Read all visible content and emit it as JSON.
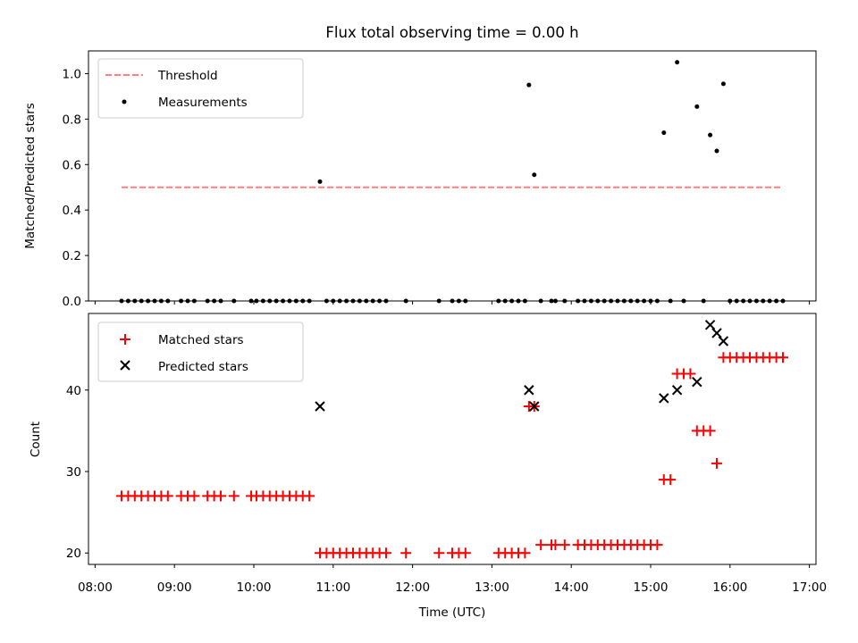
{
  "chart_data": [
    {
      "type": "scatter",
      "title": "Flux total observing time = 0.00 h",
      "ylabel": "Matched/Predicted stars",
      "xlabel": "",
      "xlim": [
        "07:55",
        "17:05"
      ],
      "ylim": [
        0.0,
        1.1
      ],
      "yticks": [
        "0.0",
        "0.2",
        "0.4",
        "0.6",
        "0.8",
        "1.0"
      ],
      "grid": false,
      "legend_position": "top-left",
      "threshold": {
        "name": "Threshold",
        "value": 0.5,
        "x_start": "08:20",
        "x_end": "16:40",
        "color": "#ff8080"
      },
      "measurements": {
        "name": "Measurements",
        "color": "#000000",
        "points": [
          [
            "08:20",
            0
          ],
          [
            "08:25",
            0
          ],
          [
            "08:30",
            0
          ],
          [
            "08:35",
            0
          ],
          [
            "08:40",
            0
          ],
          [
            "08:45",
            0
          ],
          [
            "08:50",
            0
          ],
          [
            "08:55",
            0
          ],
          [
            "09:05",
            0
          ],
          [
            "09:10",
            0
          ],
          [
            "09:15",
            0
          ],
          [
            "09:25",
            0
          ],
          [
            "09:30",
            0
          ],
          [
            "09:35",
            0
          ],
          [
            "09:45",
            0
          ],
          [
            "09:58",
            0
          ],
          [
            "10:02",
            0
          ],
          [
            "10:07",
            0
          ],
          [
            "10:12",
            0
          ],
          [
            "10:17",
            0
          ],
          [
            "10:22",
            0
          ],
          [
            "10:27",
            0
          ],
          [
            "10:32",
            0
          ],
          [
            "10:37",
            0
          ],
          [
            "10:42",
            0
          ],
          [
            "10:50",
            0.525
          ],
          [
            "10:55",
            0
          ],
          [
            "11:00",
            0
          ],
          [
            "11:05",
            0
          ],
          [
            "11:10",
            0
          ],
          [
            "11:15",
            0
          ],
          [
            "11:20",
            0
          ],
          [
            "11:25",
            0
          ],
          [
            "11:30",
            0
          ],
          [
            "11:35",
            0
          ],
          [
            "11:40",
            0
          ],
          [
            "11:55",
            0
          ],
          [
            "12:20",
            0
          ],
          [
            "12:30",
            0
          ],
          [
            "12:35",
            0
          ],
          [
            "12:40",
            0
          ],
          [
            "13:05",
            0
          ],
          [
            "13:10",
            0
          ],
          [
            "13:15",
            0
          ],
          [
            "13:20",
            0
          ],
          [
            "13:25",
            0
          ],
          [
            "13:28",
            0.95
          ],
          [
            "13:32",
            0.555
          ],
          [
            "13:37",
            0
          ],
          [
            "13:45",
            0
          ],
          [
            "13:48",
            0
          ],
          [
            "13:55",
            0
          ],
          [
            "14:05",
            0
          ],
          [
            "14:10",
            0
          ],
          [
            "14:15",
            0
          ],
          [
            "14:20",
            0
          ],
          [
            "14:25",
            0
          ],
          [
            "14:30",
            0
          ],
          [
            "14:35",
            0
          ],
          [
            "14:40",
            0
          ],
          [
            "14:45",
            0
          ],
          [
            "14:50",
            0
          ],
          [
            "14:55",
            0
          ],
          [
            "15:00",
            0
          ],
          [
            "15:05",
            0
          ],
          [
            "15:10",
            0.74
          ],
          [
            "15:15",
            0
          ],
          [
            "15:20",
            1.05
          ],
          [
            "15:25",
            0
          ],
          [
            "15:35",
            0.855
          ],
          [
            "15:40",
            0
          ],
          [
            "15:45",
            0.73
          ],
          [
            "15:50",
            0.66
          ],
          [
            "15:55",
            0.955
          ],
          [
            "16:00",
            0
          ],
          [
            "16:05",
            0
          ],
          [
            "16:10",
            0
          ],
          [
            "16:15",
            0
          ],
          [
            "16:20",
            0
          ],
          [
            "16:25",
            0
          ],
          [
            "16:30",
            0
          ],
          [
            "16:35",
            0
          ],
          [
            "16:40",
            0
          ]
        ]
      }
    },
    {
      "type": "scatter",
      "title": "",
      "ylabel": "Count",
      "xlabel": "Time (UTC)",
      "xlim": [
        "07:55",
        "17:05"
      ],
      "ylim": [
        18.6,
        49.4
      ],
      "yticks": [
        "20",
        "30",
        "40"
      ],
      "xticks": [
        "08:00",
        "09:00",
        "10:00",
        "11:00",
        "12:00",
        "13:00",
        "14:00",
        "15:00",
        "16:00",
        "17:00"
      ],
      "grid": false,
      "legend_position": "top-left",
      "series": [
        {
          "name": "Matched stars",
          "marker": "+",
          "color": "#ff0000",
          "points": [
            [
              "08:20",
              27
            ],
            [
              "08:25",
              27
            ],
            [
              "08:30",
              27
            ],
            [
              "08:35",
              27
            ],
            [
              "08:40",
              27
            ],
            [
              "08:45",
              27
            ],
            [
              "08:50",
              27
            ],
            [
              "08:55",
              27
            ],
            [
              "09:05",
              27
            ],
            [
              "09:10",
              27
            ],
            [
              "09:15",
              27
            ],
            [
              "09:25",
              27
            ],
            [
              "09:30",
              27
            ],
            [
              "09:35",
              27
            ],
            [
              "09:45",
              27
            ],
            [
              "09:58",
              27
            ],
            [
              "10:02",
              27
            ],
            [
              "10:07",
              27
            ],
            [
              "10:12",
              27
            ],
            [
              "10:17",
              27
            ],
            [
              "10:22",
              27
            ],
            [
              "10:27",
              27
            ],
            [
              "10:32",
              27
            ],
            [
              "10:37",
              27
            ],
            [
              "10:42",
              27
            ],
            [
              "10:50",
              20
            ],
            [
              "10:55",
              20
            ],
            [
              "11:00",
              20
            ],
            [
              "11:05",
              20
            ],
            [
              "11:10",
              20
            ],
            [
              "11:15",
              20
            ],
            [
              "11:20",
              20
            ],
            [
              "11:25",
              20
            ],
            [
              "11:30",
              20
            ],
            [
              "11:35",
              20
            ],
            [
              "11:40",
              20
            ],
            [
              "11:55",
              20
            ],
            [
              "12:20",
              20
            ],
            [
              "12:30",
              20
            ],
            [
              "12:35",
              20
            ],
            [
              "12:40",
              20
            ],
            [
              "13:05",
              20
            ],
            [
              "13:10",
              20
            ],
            [
              "13:15",
              20
            ],
            [
              "13:20",
              20
            ],
            [
              "13:25",
              20
            ],
            [
              "13:28",
              38
            ],
            [
              "13:32",
              38
            ],
            [
              "13:37",
              21
            ],
            [
              "13:45",
              21
            ],
            [
              "13:48",
              21
            ],
            [
              "13:55",
              21
            ],
            [
              "14:05",
              21
            ],
            [
              "14:10",
              21
            ],
            [
              "14:15",
              21
            ],
            [
              "14:20",
              21
            ],
            [
              "14:25",
              21
            ],
            [
              "14:30",
              21
            ],
            [
              "14:35",
              21
            ],
            [
              "14:40",
              21
            ],
            [
              "14:45",
              21
            ],
            [
              "14:50",
              21
            ],
            [
              "14:55",
              21
            ],
            [
              "15:00",
              21
            ],
            [
              "15:05",
              21
            ],
            [
              "15:10",
              29
            ],
            [
              "15:15",
              29
            ],
            [
              "15:20",
              42
            ],
            [
              "15:25",
              42
            ],
            [
              "15:30",
              42
            ],
            [
              "15:35",
              35
            ],
            [
              "15:40",
              35
            ],
            [
              "15:45",
              35
            ],
            [
              "15:50",
              31
            ],
            [
              "15:55",
              44
            ],
            [
              "16:00",
              44
            ],
            [
              "16:05",
              44
            ],
            [
              "16:10",
              44
            ],
            [
              "16:15",
              44
            ],
            [
              "16:20",
              44
            ],
            [
              "16:25",
              44
            ],
            [
              "16:30",
              44
            ],
            [
              "16:35",
              44
            ],
            [
              "16:40",
              44
            ]
          ]
        },
        {
          "name": "Predicted stars",
          "marker": "x",
          "color": "#000000",
          "points": [
            [
              "10:50",
              38
            ],
            [
              "13:28",
              40
            ],
            [
              "13:32",
              38
            ],
            [
              "15:10",
              39
            ],
            [
              "15:20",
              40
            ],
            [
              "15:35",
              41
            ],
            [
              "15:45",
              48
            ],
            [
              "15:50",
              47
            ],
            [
              "15:55",
              46
            ]
          ]
        }
      ]
    }
  ]
}
